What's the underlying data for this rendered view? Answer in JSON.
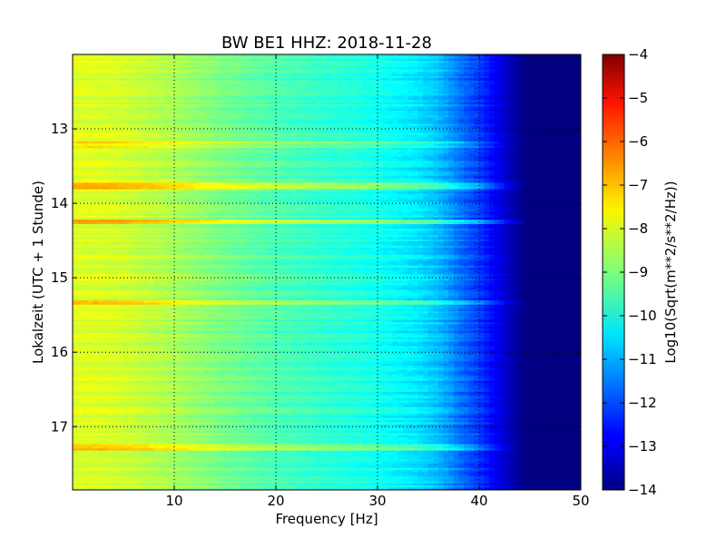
{
  "chart_data": {
    "type": "heatmap",
    "title": "BW BE1 HHZ: 2018-11-28",
    "xlabel": "Frequency [Hz]",
    "ylabel": "Lokalzeit (UTC + 1 Stunde)",
    "colorbar_label": "Log10(Sqrt(m**2/s**2/Hz))",
    "x_range": [
      0,
      50
    ],
    "y_range": [
      12,
      17.85
    ],
    "y_inverted": true,
    "x_ticks": [
      10,
      20,
      30,
      40,
      50
    ],
    "x_tick_labels": [
      "10",
      "20",
      "30",
      "40",
      "50"
    ],
    "y_ticks": [
      13,
      14,
      15,
      16,
      17
    ],
    "y_tick_labels": [
      "13",
      "14",
      "15",
      "16",
      "17"
    ],
    "color_range": [
      -14,
      -4
    ],
    "colorbar_ticks": [
      -4,
      -5,
      -6,
      -7,
      -8,
      -9,
      -10,
      -11,
      -12,
      -13,
      -14
    ],
    "colorbar_tick_labels": [
      "−4",
      "−5",
      "−6",
      "−7",
      "−8",
      "−9",
      "−10",
      "−11",
      "−12",
      "−13",
      "−14"
    ],
    "colormap": "jet",
    "grid": "dotted",
    "profile": {
      "frequency_hz": [
        0,
        2,
        5,
        10,
        15,
        20,
        25,
        28,
        30,
        32,
        34,
        36,
        37,
        38,
        39,
        40,
        41,
        42,
        43,
        44,
        45,
        46,
        50
      ],
      "log10_amplitude": [
        -8.1,
        -8.1,
        -8.2,
        -8.6,
        -9.1,
        -9.5,
        -9.8,
        -9.95,
        -10.1,
        -10.3,
        -10.5,
        -10.9,
        -11.2,
        -11.6,
        -11.9,
        -12.2,
        -12.6,
        -13.0,
        -13.4,
        -13.8,
        -14,
        -14,
        -14
      ]
    },
    "bright_bands": [
      {
        "time": 13.21,
        "boost": 0.6,
        "cutoff_hz": 44.5
      },
      {
        "time": 13.77,
        "boost": 1.0,
        "cutoff_hz": 45.5
      },
      {
        "time": 14.25,
        "boost": 1.3,
        "cutoff_hz": 46.0
      },
      {
        "time": 15.34,
        "boost": 1.1,
        "cutoff_hz": 45.5
      },
      {
        "time": 17.28,
        "boost": 0.9,
        "cutoff_hz": 44.5
      }
    ]
  }
}
